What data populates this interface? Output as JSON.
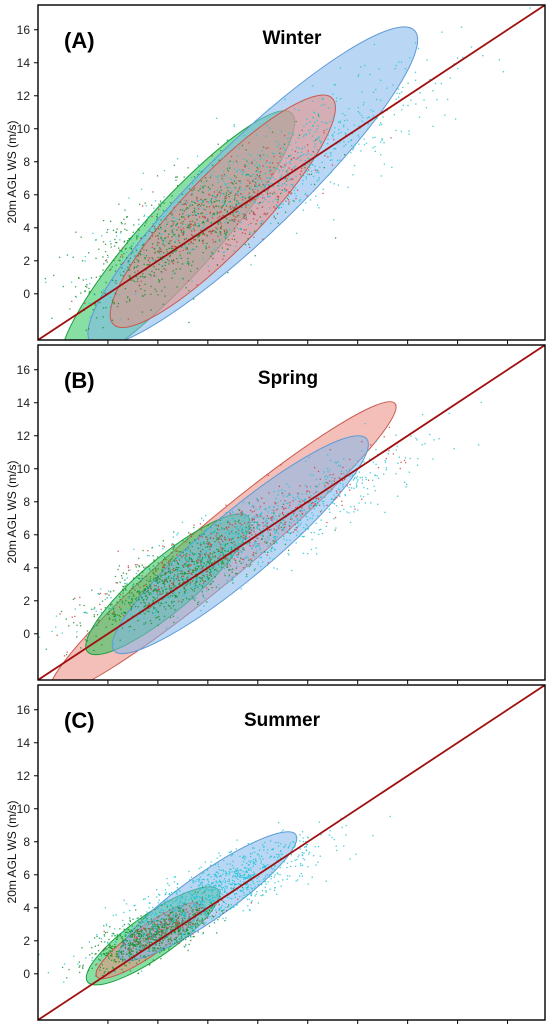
{
  "chart_data": [
    {
      "type": "scatter",
      "panel_label": "(A)",
      "title": "Winter",
      "ylabel": "20m AGL WS (m/s)",
      "xlabel": "",
      "yticks": [
        0,
        2,
        4,
        6,
        8,
        10,
        12,
        14,
        16
      ],
      "ylim": [
        -2.8,
        17.5
      ],
      "xlim": [
        -2.8,
        17.5
      ],
      "reference_line": {
        "x": [
          -2.8,
          17.5
        ],
        "y": [
          -2.8,
          17.5
        ],
        "color": "#a01010"
      },
      "colors": {
        "green": "#1a8f2a",
        "cyan": "#23c4d4",
        "red": "#d04040",
        "green_fill": "#27c45a",
        "blue_fill": "#7fb6ec",
        "red_fill": "#ec8a80"
      },
      "ellipses": [
        {
          "color": "green",
          "cx": 2.8,
          "cy": 3.3,
          "a": 6.8,
          "b": 2.2,
          "angle_deg": 48
        },
        {
          "color": "blue",
          "cx": 5.8,
          "cy": 6.5,
          "a": 9.0,
          "b": 2.8,
          "angle_deg": 44
        },
        {
          "color": "red",
          "cx": 4.6,
          "cy": 5.0,
          "a": 6.3,
          "b": 2.3,
          "angle_deg": 46
        }
      ],
      "clouds": [
        {
          "color": "green",
          "cx": 2.8,
          "cy": 3.6,
          "a": 6.5,
          "b": 2.5,
          "angle_deg": 48,
          "n": 700
        },
        {
          "color": "cyan",
          "cx": 6.5,
          "cy": 7.2,
          "a": 9.5,
          "b": 2.6,
          "angle_deg": 44,
          "n": 800
        },
        {
          "color": "red",
          "cx": 4.6,
          "cy": 5.0,
          "a": 6.0,
          "b": 2.2,
          "angle_deg": 46,
          "n": 350
        }
      ]
    },
    {
      "type": "scatter",
      "panel_label": "(B)",
      "title": "Spring",
      "ylabel": "20m AGL WS (m/s)",
      "xlabel": "",
      "yticks": [
        0,
        2,
        4,
        6,
        8,
        10,
        12,
        14,
        16
      ],
      "ylim": [
        -2.8,
        17.5
      ],
      "xlim": [
        -2.8,
        17.5
      ],
      "reference_line": {
        "x": [
          -2.8,
          17.5
        ],
        "y": [
          -2.8,
          17.5
        ],
        "color": "#a01010"
      },
      "colors": {
        "green": "#1a8f2a",
        "cyan": "#23c4d4",
        "red": "#d04040",
        "green_fill": "#27c45a",
        "blue_fill": "#7fb6ec",
        "red_fill": "#ec8a80"
      },
      "ellipses": [
        {
          "color": "red",
          "cx": 4.6,
          "cy": 5.2,
          "a": 9.0,
          "b": 1.8,
          "angle_deg": 40
        },
        {
          "color": "green",
          "cx": 2.4,
          "cy": 3.0,
          "a": 4.2,
          "b": 1.6,
          "angle_deg": 40
        },
        {
          "color": "blue",
          "cx": 5.3,
          "cy": 5.4,
          "a": 6.6,
          "b": 2.0,
          "angle_deg": 40
        }
      ],
      "clouds": [
        {
          "color": "green",
          "cx": 2.6,
          "cy": 3.4,
          "a": 5.0,
          "b": 1.7,
          "angle_deg": 42,
          "n": 800
        },
        {
          "color": "cyan",
          "cx": 6.0,
          "cy": 6.2,
          "a": 8.5,
          "b": 1.9,
          "angle_deg": 40,
          "n": 900
        },
        {
          "color": "red",
          "cx": 5.0,
          "cy": 5.8,
          "a": 7.5,
          "b": 1.6,
          "angle_deg": 40,
          "n": 400
        }
      ]
    },
    {
      "type": "scatter",
      "panel_label": "(C)",
      "title": "Summer",
      "ylabel": "20m AGL WS (m/s)",
      "xlabel": "",
      "yticks": [
        0,
        2,
        4,
        6,
        8,
        10,
        12,
        14,
        16
      ],
      "ylim": [
        -2.8,
        17.5
      ],
      "xlim": [
        -2.8,
        17.5
      ],
      "reference_line": {
        "x": [
          -2.8,
          17.5
        ],
        "y": [
          -2.8,
          17.5
        ],
        "color": "#a01010"
      },
      "colors": {
        "green": "#1a8f2a",
        "cyan": "#23c4d4",
        "red": "#d04040",
        "green_fill": "#27c45a",
        "blue_fill": "#7fb6ec",
        "red_fill": "#ec8a80"
      },
      "ellipses": [
        {
          "color": "green",
          "cx": 1.8,
          "cy": 2.3,
          "a": 3.2,
          "b": 1.3,
          "angle_deg": 35
        },
        {
          "color": "red",
          "cx": 1.6,
          "cy": 2.0,
          "a": 2.5,
          "b": 0.9,
          "angle_deg": 35
        },
        {
          "color": "blue",
          "cx": 4.0,
          "cy": 4.7,
          "a": 4.3,
          "b": 1.4,
          "angle_deg": 35
        }
      ],
      "clouds": [
        {
          "color": "green",
          "cx": 1.8,
          "cy": 2.4,
          "a": 3.2,
          "b": 1.2,
          "angle_deg": 35,
          "n": 800
        },
        {
          "color": "cyan",
          "cx": 4.5,
          "cy": 5.2,
          "a": 5.8,
          "b": 1.5,
          "angle_deg": 37,
          "n": 1000
        },
        {
          "color": "red",
          "cx": 2.2,
          "cy": 2.8,
          "a": 2.6,
          "b": 0.8,
          "angle_deg": 35,
          "n": 120
        }
      ]
    }
  ]
}
